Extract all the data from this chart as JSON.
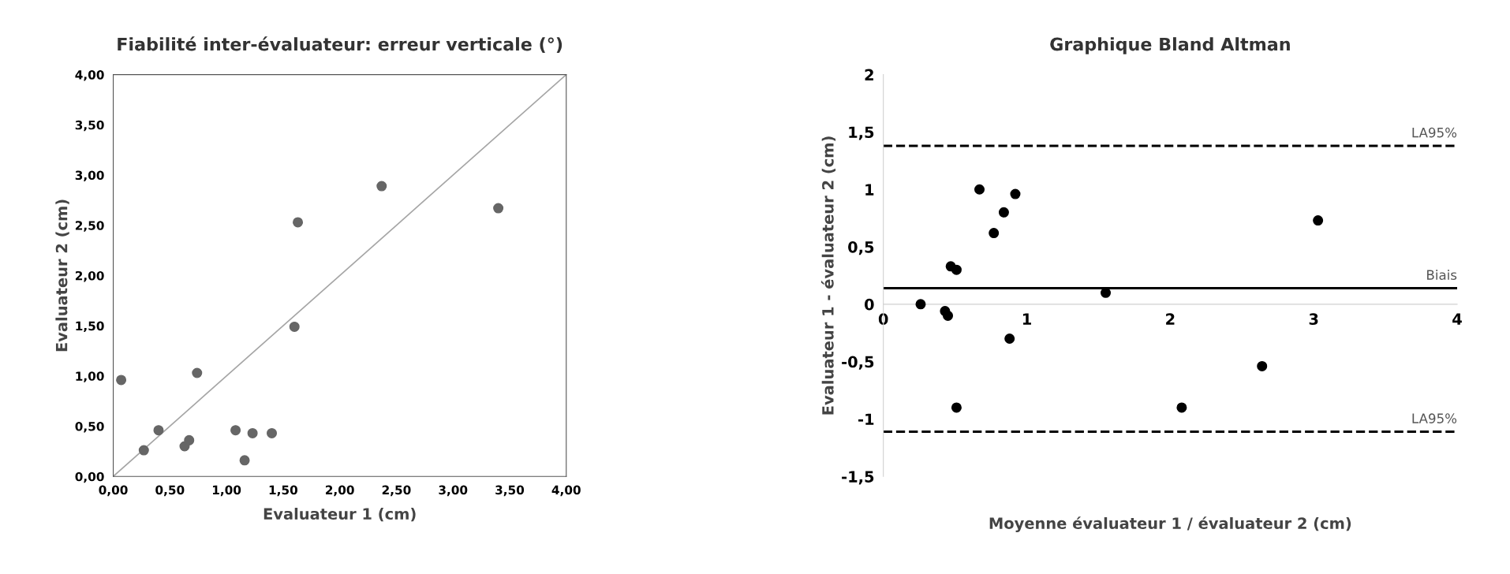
{
  "chart_data": [
    {
      "type": "scatter",
      "title": "Fiabilité inter-évaluateur: erreur verticale (°)",
      "xlabel": "Evaluateur 1 (cm)",
      "ylabel": "Evaluateur 2 (cm)",
      "marker": "circle",
      "grid": false,
      "xlim": [
        0,
        4
      ],
      "ylim": [
        0,
        4
      ],
      "xticks": [
        {
          "value": 0,
          "label": "0,00"
        },
        {
          "value": 0.5,
          "label": "0,50"
        },
        {
          "value": 1,
          "label": "1,00"
        },
        {
          "value": 1.5,
          "label": "1,50"
        },
        {
          "value": 2,
          "label": "2,00"
        },
        {
          "value": 2.5,
          "label": "2,50"
        },
        {
          "value": 3,
          "label": "3,00"
        },
        {
          "value": 3.5,
          "label": "3,50"
        },
        {
          "value": 4,
          "label": "4,00"
        }
      ],
      "yticks": [
        {
          "value": 0,
          "label": "0,00"
        },
        {
          "value": 0.5,
          "label": "0,50"
        },
        {
          "value": 1,
          "label": "1,00"
        },
        {
          "value": 1.5,
          "label": "1,50"
        },
        {
          "value": 2,
          "label": "2,00"
        },
        {
          "value": 2.5,
          "label": "2,50"
        },
        {
          "value": 3,
          "label": "3,00"
        },
        {
          "value": 3.5,
          "label": "3,50"
        },
        {
          "value": 4,
          "label": "4,00"
        }
      ],
      "series": [
        {
          "color": "#666666",
          "x": [
            0.07,
            0.27,
            0.4,
            0.63,
            0.67,
            0.74,
            1.08,
            1.16,
            1.23,
            1.4,
            1.6,
            1.63,
            2.37,
            3.4
          ],
          "values": [
            0.96,
            0.26,
            0.46,
            0.3,
            0.36,
            1.03,
            0.46,
            0.16,
            0.43,
            0.43,
            1.49,
            2.53,
            2.89,
            2.67
          ]
        },
        {
          "type": "line",
          "marker": "none",
          "color": "#a6a6a6",
          "x": [
            0,
            4
          ],
          "values": [
            0,
            4
          ]
        }
      ]
    },
    {
      "type": "scatter",
      "title": "Graphique Bland Altman",
      "xlabel": "Moyenne évaluateur 1 / évaluateur 2 (cm)",
      "ylabel": "Evaluateur 1 - évaluateur 2 (cm)",
      "marker": "circle",
      "grid": false,
      "xlim": [
        0,
        4
      ],
      "ylim": [
        -1.5,
        2
      ],
      "xticks": [
        0,
        1,
        2,
        3,
        4
      ],
      "yticks": [
        {
          "value": -1.5,
          "label": "-1,5"
        },
        {
          "value": -1,
          "label": "-1"
        },
        {
          "value": -0.5,
          "label": "-0,5"
        },
        {
          "value": 0,
          "label": "0"
        },
        {
          "value": 0.5,
          "label": "0,5"
        },
        {
          "value": 1,
          "label": "1"
        },
        {
          "value": 1.5,
          "label": "1,5"
        },
        {
          "value": 2,
          "label": "2"
        }
      ],
      "series": [
        {
          "color": "#000000",
          "x": [
            0.26,
            0.43,
            0.45,
            0.47,
            0.51,
            0.51,
            0.67,
            0.77,
            0.84,
            0.88,
            0.92,
            1.55,
            2.08,
            2.64,
            3.03
          ],
          "values": [
            0.0,
            -0.06,
            -0.1,
            0.33,
            0.3,
            -0.9,
            1.0,
            0.62,
            0.8,
            -0.3,
            0.96,
            0.1,
            -0.9,
            -0.54,
            0.73
          ]
        }
      ],
      "ref_lines": [
        {
          "axis": "y",
          "value": 1.38,
          "label": "LA95%",
          "color": "#000000",
          "line_style": "dashed"
        },
        {
          "axis": "y",
          "value": 0.14,
          "label": "Biais",
          "color": "#000000",
          "line_style": "solid"
        },
        {
          "axis": "y",
          "value": -1.11,
          "label": "LA95%",
          "color": "#000000",
          "line_style": "dashed"
        }
      ]
    }
  ]
}
